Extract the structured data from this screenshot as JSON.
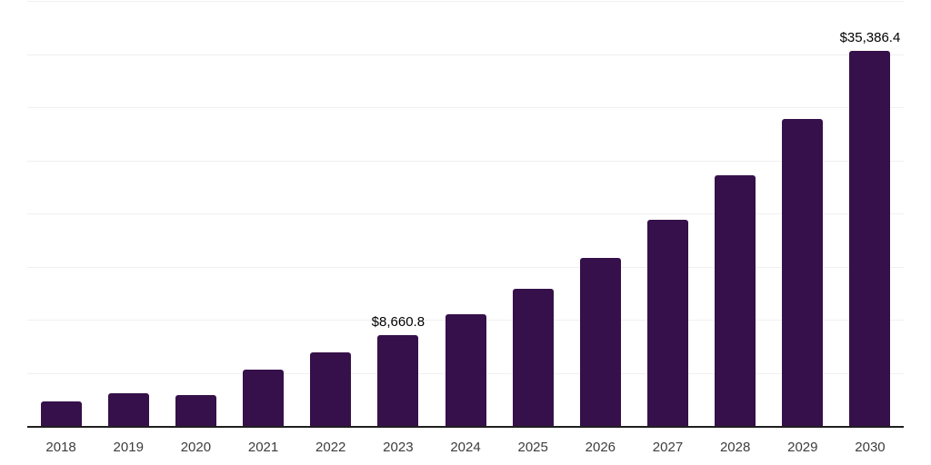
{
  "chart_data": {
    "type": "bar",
    "title": "",
    "xlabel": "",
    "ylabel": "",
    "categories": [
      "2018",
      "2019",
      "2020",
      "2021",
      "2022",
      "2023",
      "2024",
      "2025",
      "2026",
      "2027",
      "2028",
      "2029",
      "2030"
    ],
    "values": [
      2430,
      3200,
      3030,
      5420,
      7020,
      8660.8,
      10630,
      13020,
      15900,
      19500,
      23670,
      28980,
      35386.4
    ],
    "data_labels": [
      "",
      "",
      "",
      "",
      "",
      "$8,660.8",
      "",
      "",
      "",
      "",
      "",
      "",
      "$35,386.4"
    ],
    "ylim": [
      0,
      40000
    ],
    "gridline_interval": 5000,
    "grid": true,
    "legend": "none",
    "colors": {
      "bar": "#36104A",
      "gridline": "#F0F0F0",
      "axis_line": "#1F1F1F",
      "tick_label": "#3D3D3D",
      "data_label": "#000000",
      "background": "#FFFFFF"
    }
  }
}
